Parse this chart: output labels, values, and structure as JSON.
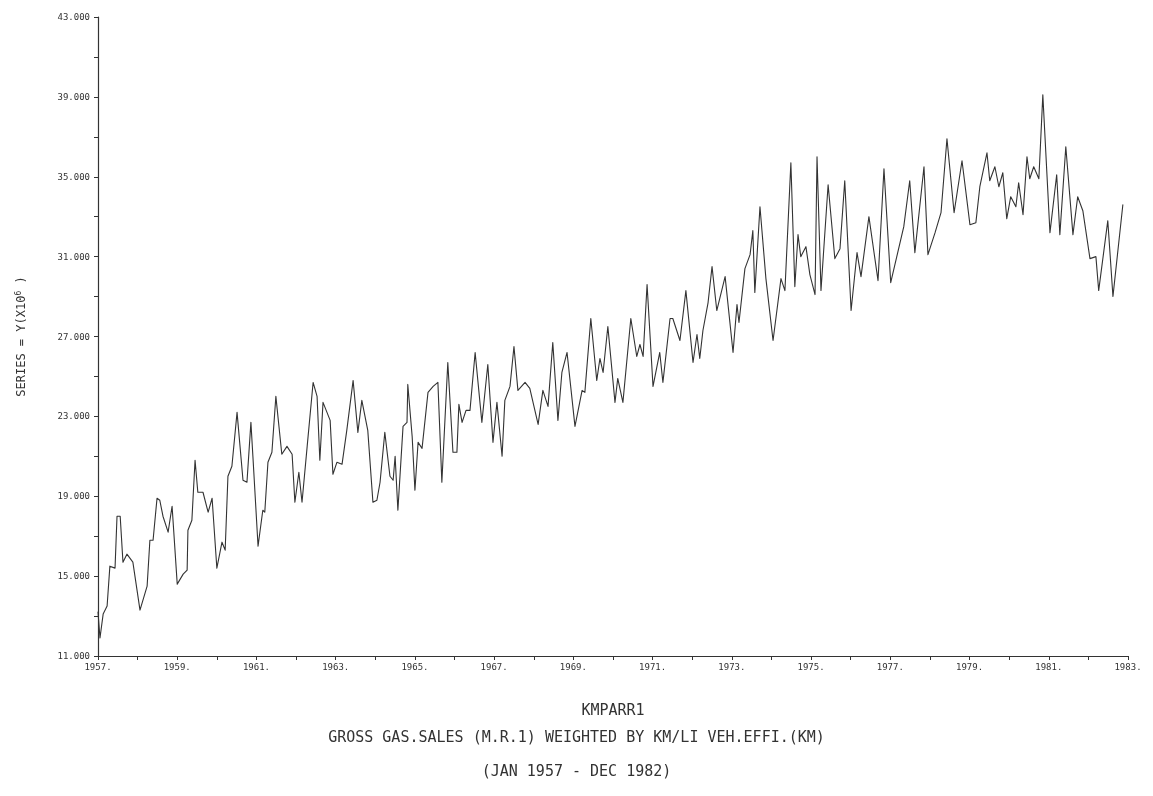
{
  "chart_data": {
    "type": "line",
    "title": "GROSS GAS.SALES (M.R.1) WEIGHTED BY KM/LI VEH.EFFI.(KM)",
    "subtitle": "(JAN 1957 - DEC 1982)",
    "xlabel": "KMPARR1",
    "ylabel": "SERIES = Y(X10$^{6}$ )",
    "xlim": [
      1957,
      1983
    ],
    "ylim": [
      11,
      43
    ],
    "xticks": [
      {
        "value": 1957,
        "label": "1957."
      },
      {
        "value": 1958,
        "label": null
      },
      {
        "value": 1959,
        "label": "1959."
      },
      {
        "value": 1960,
        "label": null
      },
      {
        "value": 1961,
        "label": "1961."
      },
      {
        "value": 1962,
        "label": null
      },
      {
        "value": 1963,
        "label": "1963."
      },
      {
        "value": 1964,
        "label": null
      },
      {
        "value": 1965,
        "label": "1965."
      },
      {
        "value": 1966,
        "label": null
      },
      {
        "value": 1967,
        "label": "1967."
      },
      {
        "value": 1968,
        "label": null
      },
      {
        "value": 1969,
        "label": "1969."
      },
      {
        "value": 1970,
        "label": null
      },
      {
        "value": 1971,
        "label": "1971."
      },
      {
        "value": 1972,
        "label": null
      },
      {
        "value": 1973,
        "label": "1973."
      },
      {
        "value": 1974,
        "label": null
      },
      {
        "value": 1975,
        "label": "1975."
      },
      {
        "value": 1976,
        "label": null
      },
      {
        "value": 1977,
        "label": "1977."
      },
      {
        "value": 1978,
        "label": null
      },
      {
        "value": 1979,
        "label": "1979."
      },
      {
        "value": 1980,
        "label": null
      },
      {
        "value": 1981,
        "label": "1981."
      },
      {
        "value": 1982,
        "label": null
      },
      {
        "value": 1983,
        "label": "1983."
      }
    ],
    "yticks": [
      {
        "value": 11,
        "label": "11.000"
      },
      {
        "value": 13,
        "label": null
      },
      {
        "value": 15,
        "label": "15.000"
      },
      {
        "value": 17,
        "label": null
      },
      {
        "value": 19,
        "label": "19.000"
      },
      {
        "value": 21,
        "label": null
      },
      {
        "value": 23,
        "label": "23.000"
      },
      {
        "value": 25,
        "label": null
      },
      {
        "value": 27,
        "label": "27.000"
      },
      {
        "value": 29,
        "label": null
      },
      {
        "value": 31,
        "label": "31.000"
      },
      {
        "value": 33,
        "label": null
      },
      {
        "value": 35,
        "label": "35.000"
      },
      {
        "value": 37,
        "label": null
      },
      {
        "value": 39,
        "label": "39.000"
      },
      {
        "value": 41,
        "label": null
      },
      {
        "value": 43,
        "label": "43.000"
      }
    ],
    "grid": false,
    "marker": "none",
    "line_style": "solid",
    "series": [
      {
        "color": "#333333",
        "x": [
          1957.0,
          1957.05,
          1957.13,
          1957.23,
          1957.3,
          1957.43,
          1957.48,
          1957.56,
          1957.63,
          1957.73,
          1957.88,
          1958.06,
          1958.24,
          1958.31,
          1958.39,
          1958.49,
          1958.56,
          1958.64,
          1958.77,
          1958.87,
          1959.0,
          1959.15,
          1959.25,
          1959.27,
          1959.37,
          1959.45,
          1959.52,
          1959.65,
          1959.78,
          1959.88,
          1960.0,
          1960.13,
          1960.21,
          1960.28,
          1960.38,
          1960.51,
          1960.66,
          1960.76,
          1960.86,
          1960.91,
          1961.04,
          1961.16,
          1961.21,
          1961.29,
          1961.39,
          1961.49,
          1961.64,
          1961.77,
          1961.9,
          1961.97,
          1962.07,
          1962.15,
          1962.28,
          1962.43,
          1962.53,
          1962.6,
          1962.68,
          1962.86,
          1962.93,
          1963.03,
          1963.16,
          1963.28,
          1963.44,
          1963.56,
          1963.66,
          1963.81,
          1963.94,
          1964.04,
          1964.12,
          1964.24,
          1964.37,
          1964.45,
          1964.5,
          1964.57,
          1964.7,
          1964.8,
          1964.82,
          1964.93,
          1965.0,
          1965.08,
          1965.18,
          1965.33,
          1965.46,
          1965.58,
          1965.68,
          1965.83,
          1965.96,
          1966.06,
          1966.11,
          1966.19,
          1966.29,
          1966.39,
          1966.52,
          1966.69,
          1966.84,
          1966.97,
          1967.07,
          1967.2,
          1967.27,
          1967.4,
          1967.5,
          1967.6,
          1967.78,
          1967.9,
          1968.11,
          1968.23,
          1968.36,
          1968.48,
          1968.61,
          1968.71,
          1968.84,
          1969.04,
          1969.22,
          1969.29,
          1969.44,
          1969.59,
          1969.67,
          1969.75,
          1969.87,
          1970.05,
          1970.12,
          1970.25,
          1970.45,
          1970.6,
          1970.68,
          1970.76,
          1970.86,
          1971.01,
          1971.18,
          1971.26,
          1971.44,
          1971.51,
          1971.69,
          1971.84,
          1972.02,
          1972.12,
          1972.19,
          1972.27,
          1972.4,
          1972.5,
          1972.62,
          1972.83,
          1973.03,
          1973.13,
          1973.18,
          1973.33,
          1973.46,
          1973.53,
          1973.58,
          1973.71,
          1973.86,
          1974.04,
          1974.24,
          1974.34,
          1974.49,
          1974.59,
          1974.67,
          1974.74,
          1974.87,
          1974.97,
          1975.1,
          1975.15,
          1975.25,
          1975.43,
          1975.6,
          1975.73,
          1975.85,
          1976.01,
          1976.16,
          1976.26,
          1976.46,
          1976.69,
          1976.84,
          1977.01,
          1977.34,
          1977.49,
          1977.62,
          1977.85,
          1977.95,
          1978.13,
          1978.28,
          1978.43,
          1978.61,
          1978.81,
          1979.01,
          1979.16,
          1979.26,
          1979.44,
          1979.51,
          1979.64,
          1979.74,
          1979.84,
          1979.94,
          1980.04,
          1980.17,
          1980.24,
          1980.35,
          1980.45,
          1980.52,
          1980.62,
          1980.75,
          1980.85,
          1981.03,
          1981.2,
          1981.28,
          1981.43,
          1981.61,
          1981.73,
          1981.86,
          1982.04,
          1982.19,
          1982.26,
          1982.49,
          1982.62,
          1982.87
        ],
        "values": [
          13.2,
          11.9,
          13.1,
          13.5,
          15.5,
          15.4,
          18.0,
          18.0,
          15.7,
          16.1,
          15.7,
          13.3,
          14.5,
          16.8,
          16.8,
          18.9,
          18.8,
          18.0,
          17.2,
          18.5,
          14.6,
          15.1,
          15.3,
          17.3,
          17.8,
          20.8,
          19.2,
          19.2,
          18.2,
          18.9,
          15.4,
          16.7,
          16.3,
          20.0,
          20.5,
          23.2,
          19.8,
          19.7,
          22.7,
          21.0,
          16.5,
          18.3,
          18.2,
          20.7,
          21.2,
          24.0,
          21.1,
          21.5,
          21.1,
          18.7,
          20.2,
          18.7,
          21.5,
          24.7,
          24.0,
          20.8,
          23.7,
          22.8,
          20.1,
          20.7,
          20.6,
          22.3,
          24.8,
          22.2,
          23.8,
          22.3,
          18.7,
          18.8,
          19.7,
          22.2,
          20.0,
          19.8,
          21.0,
          18.3,
          22.5,
          22.7,
          24.6,
          22.0,
          19.3,
          21.7,
          21.4,
          24.2,
          24.5,
          24.7,
          19.7,
          25.7,
          21.2,
          21.2,
          23.6,
          22.7,
          23.3,
          23.3,
          26.2,
          22.7,
          25.6,
          21.7,
          23.7,
          21.0,
          23.8,
          24.5,
          26.5,
          24.3,
          24.7,
          24.4,
          22.6,
          24.3,
          23.5,
          26.7,
          22.8,
          25.2,
          26.2,
          22.5,
          24.3,
          24.2,
          27.9,
          24.8,
          25.9,
          25.2,
          27.5,
          23.7,
          24.9,
          23.7,
          27.9,
          26.0,
          26.6,
          26.0,
          29.6,
          24.5,
          26.2,
          24.7,
          27.9,
          27.9,
          26.8,
          29.3,
          25.7,
          27.1,
          25.9,
          27.3,
          28.7,
          30.5,
          28.3,
          30.0,
          26.2,
          28.6,
          27.7,
          30.4,
          31.1,
          32.3,
          29.2,
          33.5,
          29.9,
          26.8,
          29.9,
          29.3,
          35.7,
          29.5,
          32.1,
          31.0,
          31.5,
          30.1,
          29.1,
          36.0,
          29.3,
          34.6,
          30.9,
          31.4,
          34.8,
          28.3,
          31.2,
          30.0,
          33.0,
          29.8,
          35.4,
          29.7,
          32.5,
          34.8,
          31.2,
          35.5,
          31.1,
          32.2,
          33.2,
          36.9,
          33.2,
          35.8,
          32.6,
          32.7,
          34.5,
          36.2,
          34.8,
          35.5,
          34.5,
          35.2,
          32.9,
          34.0,
          33.5,
          34.7,
          33.1,
          36.0,
          34.9,
          35.5,
          34.9,
          39.1,
          32.2,
          35.1,
          32.1,
          36.5,
          32.1,
          34.0,
          33.3,
          30.9,
          31.0,
          29.3,
          32.8,
          29.0,
          33.6
        ]
      }
    ]
  }
}
